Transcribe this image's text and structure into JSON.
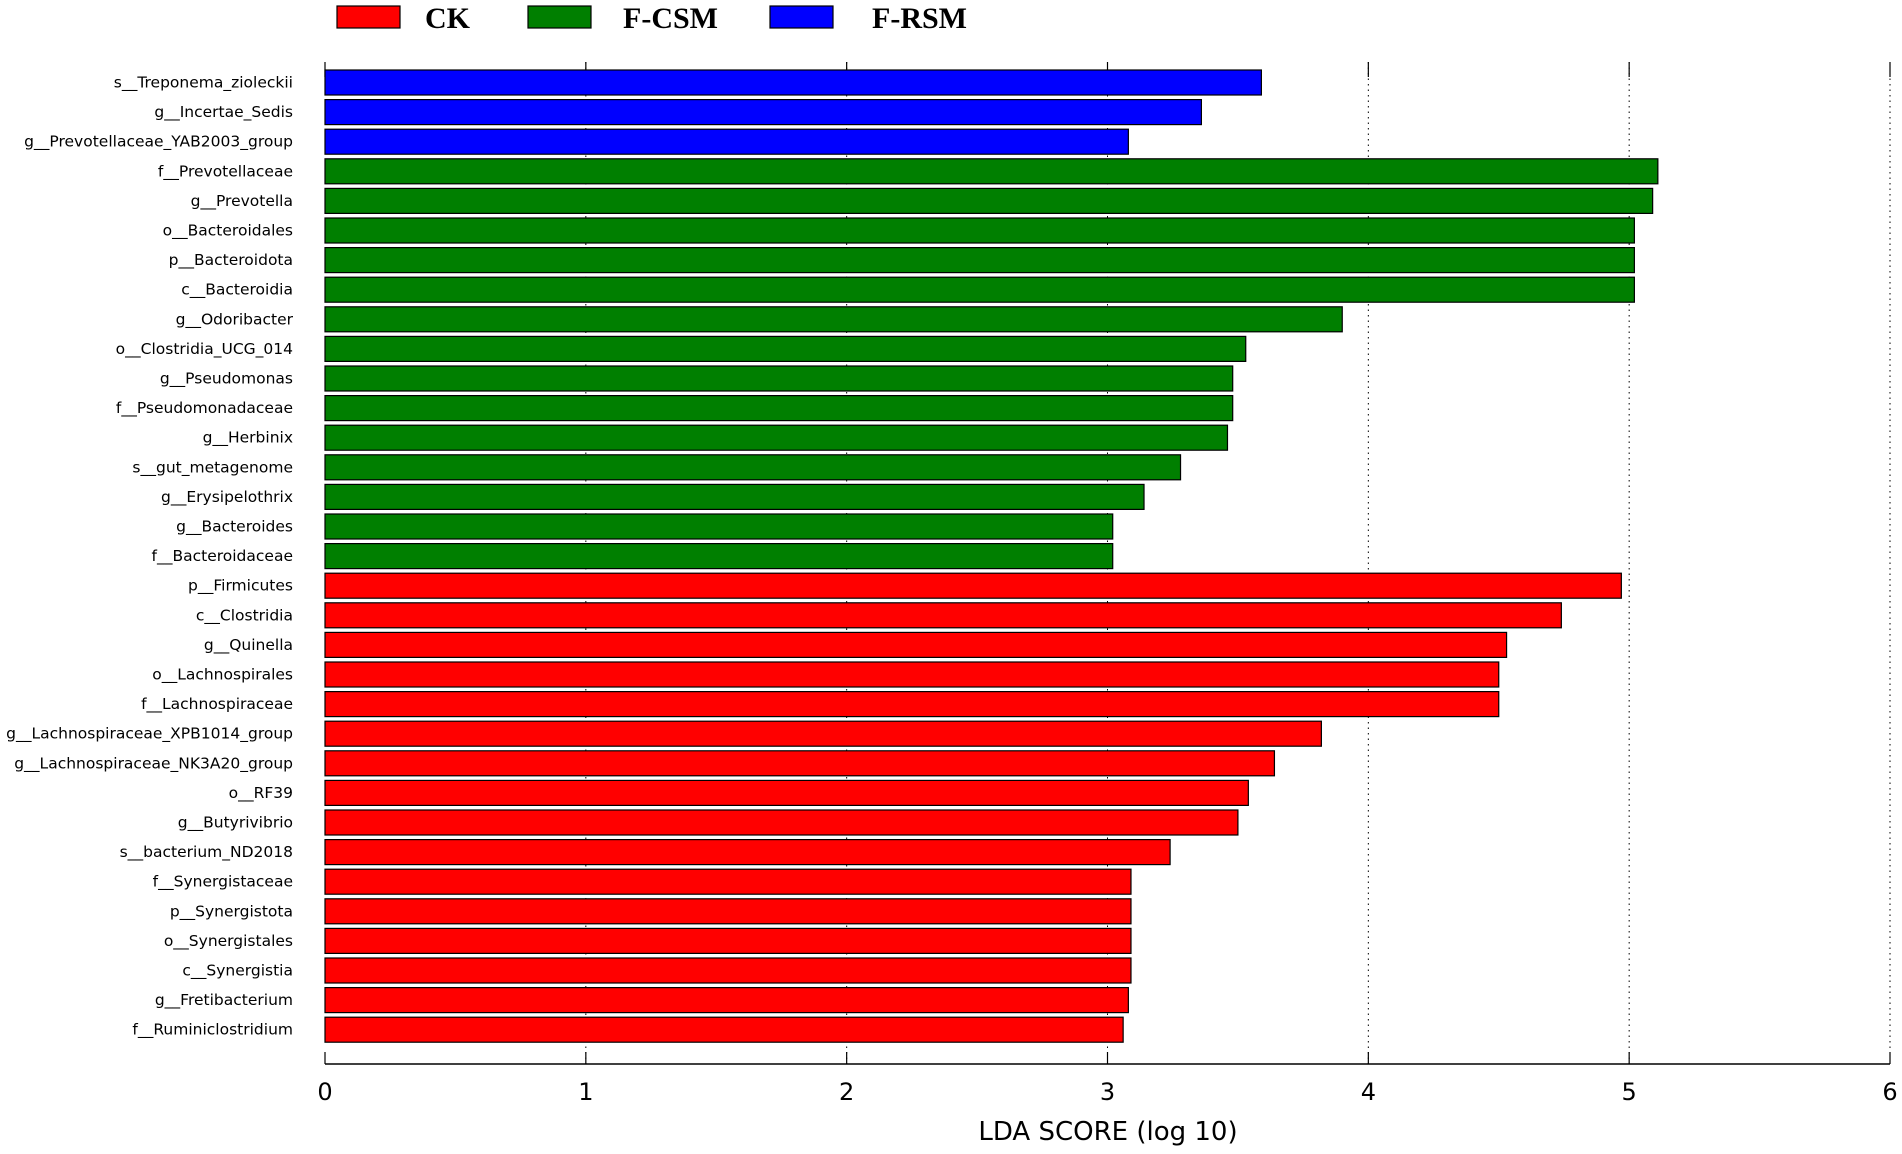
{
  "chart_data": {
    "type": "bar",
    "orientation": "horizontal",
    "xlabel": "LDA SCORE (log 10)",
    "xlim": [
      0,
      6
    ],
    "xticks": [
      "0",
      "1",
      "2",
      "3",
      "4",
      "5",
      "6"
    ],
    "grid": "vertical dotted",
    "legend_position": "top",
    "legend": [
      {
        "name": "CK",
        "color": "#ff0000"
      },
      {
        "name": "F-CSM",
        "color": "#007f00"
      },
      {
        "name": "F-RSM",
        "color": "#0000ff"
      }
    ],
    "bars": [
      {
        "label": "s__Treponema_zioleckii",
        "value": 3.59,
        "group": "F-RSM"
      },
      {
        "label": "g__Incertae_Sedis",
        "value": 3.36,
        "group": "F-RSM"
      },
      {
        "label": "g__Prevotellaceae_YAB2003_group",
        "value": 3.08,
        "group": "F-RSM"
      },
      {
        "label": "f__Prevotellaceae",
        "value": 5.11,
        "group": "F-CSM"
      },
      {
        "label": "g__Prevotella",
        "value": 5.09,
        "group": "F-CSM"
      },
      {
        "label": "o__Bacteroidales",
        "value": 5.02,
        "group": "F-CSM"
      },
      {
        "label": "p__Bacteroidota",
        "value": 5.02,
        "group": "F-CSM"
      },
      {
        "label": "c__Bacteroidia",
        "value": 5.02,
        "group": "F-CSM"
      },
      {
        "label": "g__Odoribacter",
        "value": 3.9,
        "group": "F-CSM"
      },
      {
        "label": "o__Clostridia_UCG_014",
        "value": 3.53,
        "group": "F-CSM"
      },
      {
        "label": "g__Pseudomonas",
        "value": 3.48,
        "group": "F-CSM"
      },
      {
        "label": "f__Pseudomonadaceae",
        "value": 3.48,
        "group": "F-CSM"
      },
      {
        "label": "g__Herbinix",
        "value": 3.46,
        "group": "F-CSM"
      },
      {
        "label": "s__gut_metagenome",
        "value": 3.28,
        "group": "F-CSM"
      },
      {
        "label": "g__Erysipelothrix",
        "value": 3.14,
        "group": "F-CSM"
      },
      {
        "label": "g__Bacteroides",
        "value": 3.02,
        "group": "F-CSM"
      },
      {
        "label": "f__Bacteroidaceae",
        "value": 3.02,
        "group": "F-CSM"
      },
      {
        "label": "p__Firmicutes",
        "value": 4.97,
        "group": "CK"
      },
      {
        "label": "c__Clostridia",
        "value": 4.74,
        "group": "CK"
      },
      {
        "label": "g__Quinella",
        "value": 4.53,
        "group": "CK"
      },
      {
        "label": "o__Lachnospirales",
        "value": 4.5,
        "group": "CK"
      },
      {
        "label": "f__Lachnospiraceae",
        "value": 4.5,
        "group": "CK"
      },
      {
        "label": "g__Lachnospiraceae_XPB1014_group",
        "value": 3.82,
        "group": "CK"
      },
      {
        "label": "g__Lachnospiraceae_NK3A20_group",
        "value": 3.64,
        "group": "CK"
      },
      {
        "label": "o__RF39",
        "value": 3.54,
        "group": "CK"
      },
      {
        "label": "g__Butyrivibrio",
        "value": 3.5,
        "group": "CK"
      },
      {
        "label": "s__bacterium_ND2018",
        "value": 3.24,
        "group": "CK"
      },
      {
        "label": "f__Synergistaceae",
        "value": 3.09,
        "group": "CK"
      },
      {
        "label": "p__Synergistota",
        "value": 3.09,
        "group": "CK"
      },
      {
        "label": "o__Synergistales",
        "value": 3.09,
        "group": "CK"
      },
      {
        "label": "c__Synergistia",
        "value": 3.09,
        "group": "CK"
      },
      {
        "label": "g__Fretibacterium",
        "value": 3.08,
        "group": "CK"
      },
      {
        "label": "f__Ruminiclostridium",
        "value": 3.06,
        "group": "CK"
      }
    ]
  }
}
